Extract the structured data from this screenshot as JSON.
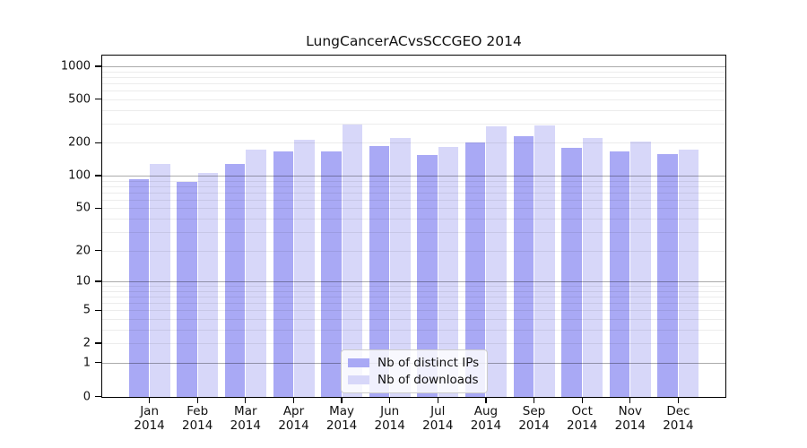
{
  "title": "LungCancerACvsSCCGEO 2014",
  "chart_data": {
    "type": "bar",
    "title": "LungCancerACvsSCCGEO 2014",
    "categories": [
      "Jan",
      "Feb",
      "Mar",
      "Apr",
      "May",
      "Jun",
      "Jul",
      "Aug",
      "Sep",
      "Oct",
      "Nov",
      "Dec"
    ],
    "category_year": "2014",
    "series": [
      {
        "name": "Nb of distinct IPs",
        "color": "#a9a9f5",
        "values": [
          93,
          87,
          127,
          167,
          166,
          188,
          155,
          200,
          229,
          180,
          166,
          157
        ]
      },
      {
        "name": "Nb of downloads",
        "color": "#d7d7f9",
        "values": [
          129,
          105,
          174,
          213,
          294,
          220,
          183,
          283,
          288,
          221,
          205,
          172
        ]
      }
    ],
    "xlabel": "",
    "ylabel": "",
    "y_axis": {
      "scale": "log10(value+1)",
      "tick_labels": [
        0,
        1,
        2,
        5,
        10,
        20,
        50,
        100,
        200,
        500,
        1000
      ],
      "gridline_values": [
        1,
        2,
        3,
        4,
        5,
        6,
        7,
        8,
        9,
        10,
        20,
        30,
        40,
        50,
        60,
        70,
        80,
        90,
        100,
        200,
        300,
        400,
        500,
        600,
        700,
        800,
        900,
        1000
      ],
      "ylim": [
        0,
        1276
      ],
      "grid": "on"
    },
    "legend_position": "bottom-center",
    "colors": {
      "bar_distinct_ips": "#a9a9f5",
      "bar_downloads": "#d7d7f9",
      "grid_minor": "#ececec",
      "grid_major": "#ababab",
      "axis": "#000000",
      "background": "#ffffff"
    }
  }
}
